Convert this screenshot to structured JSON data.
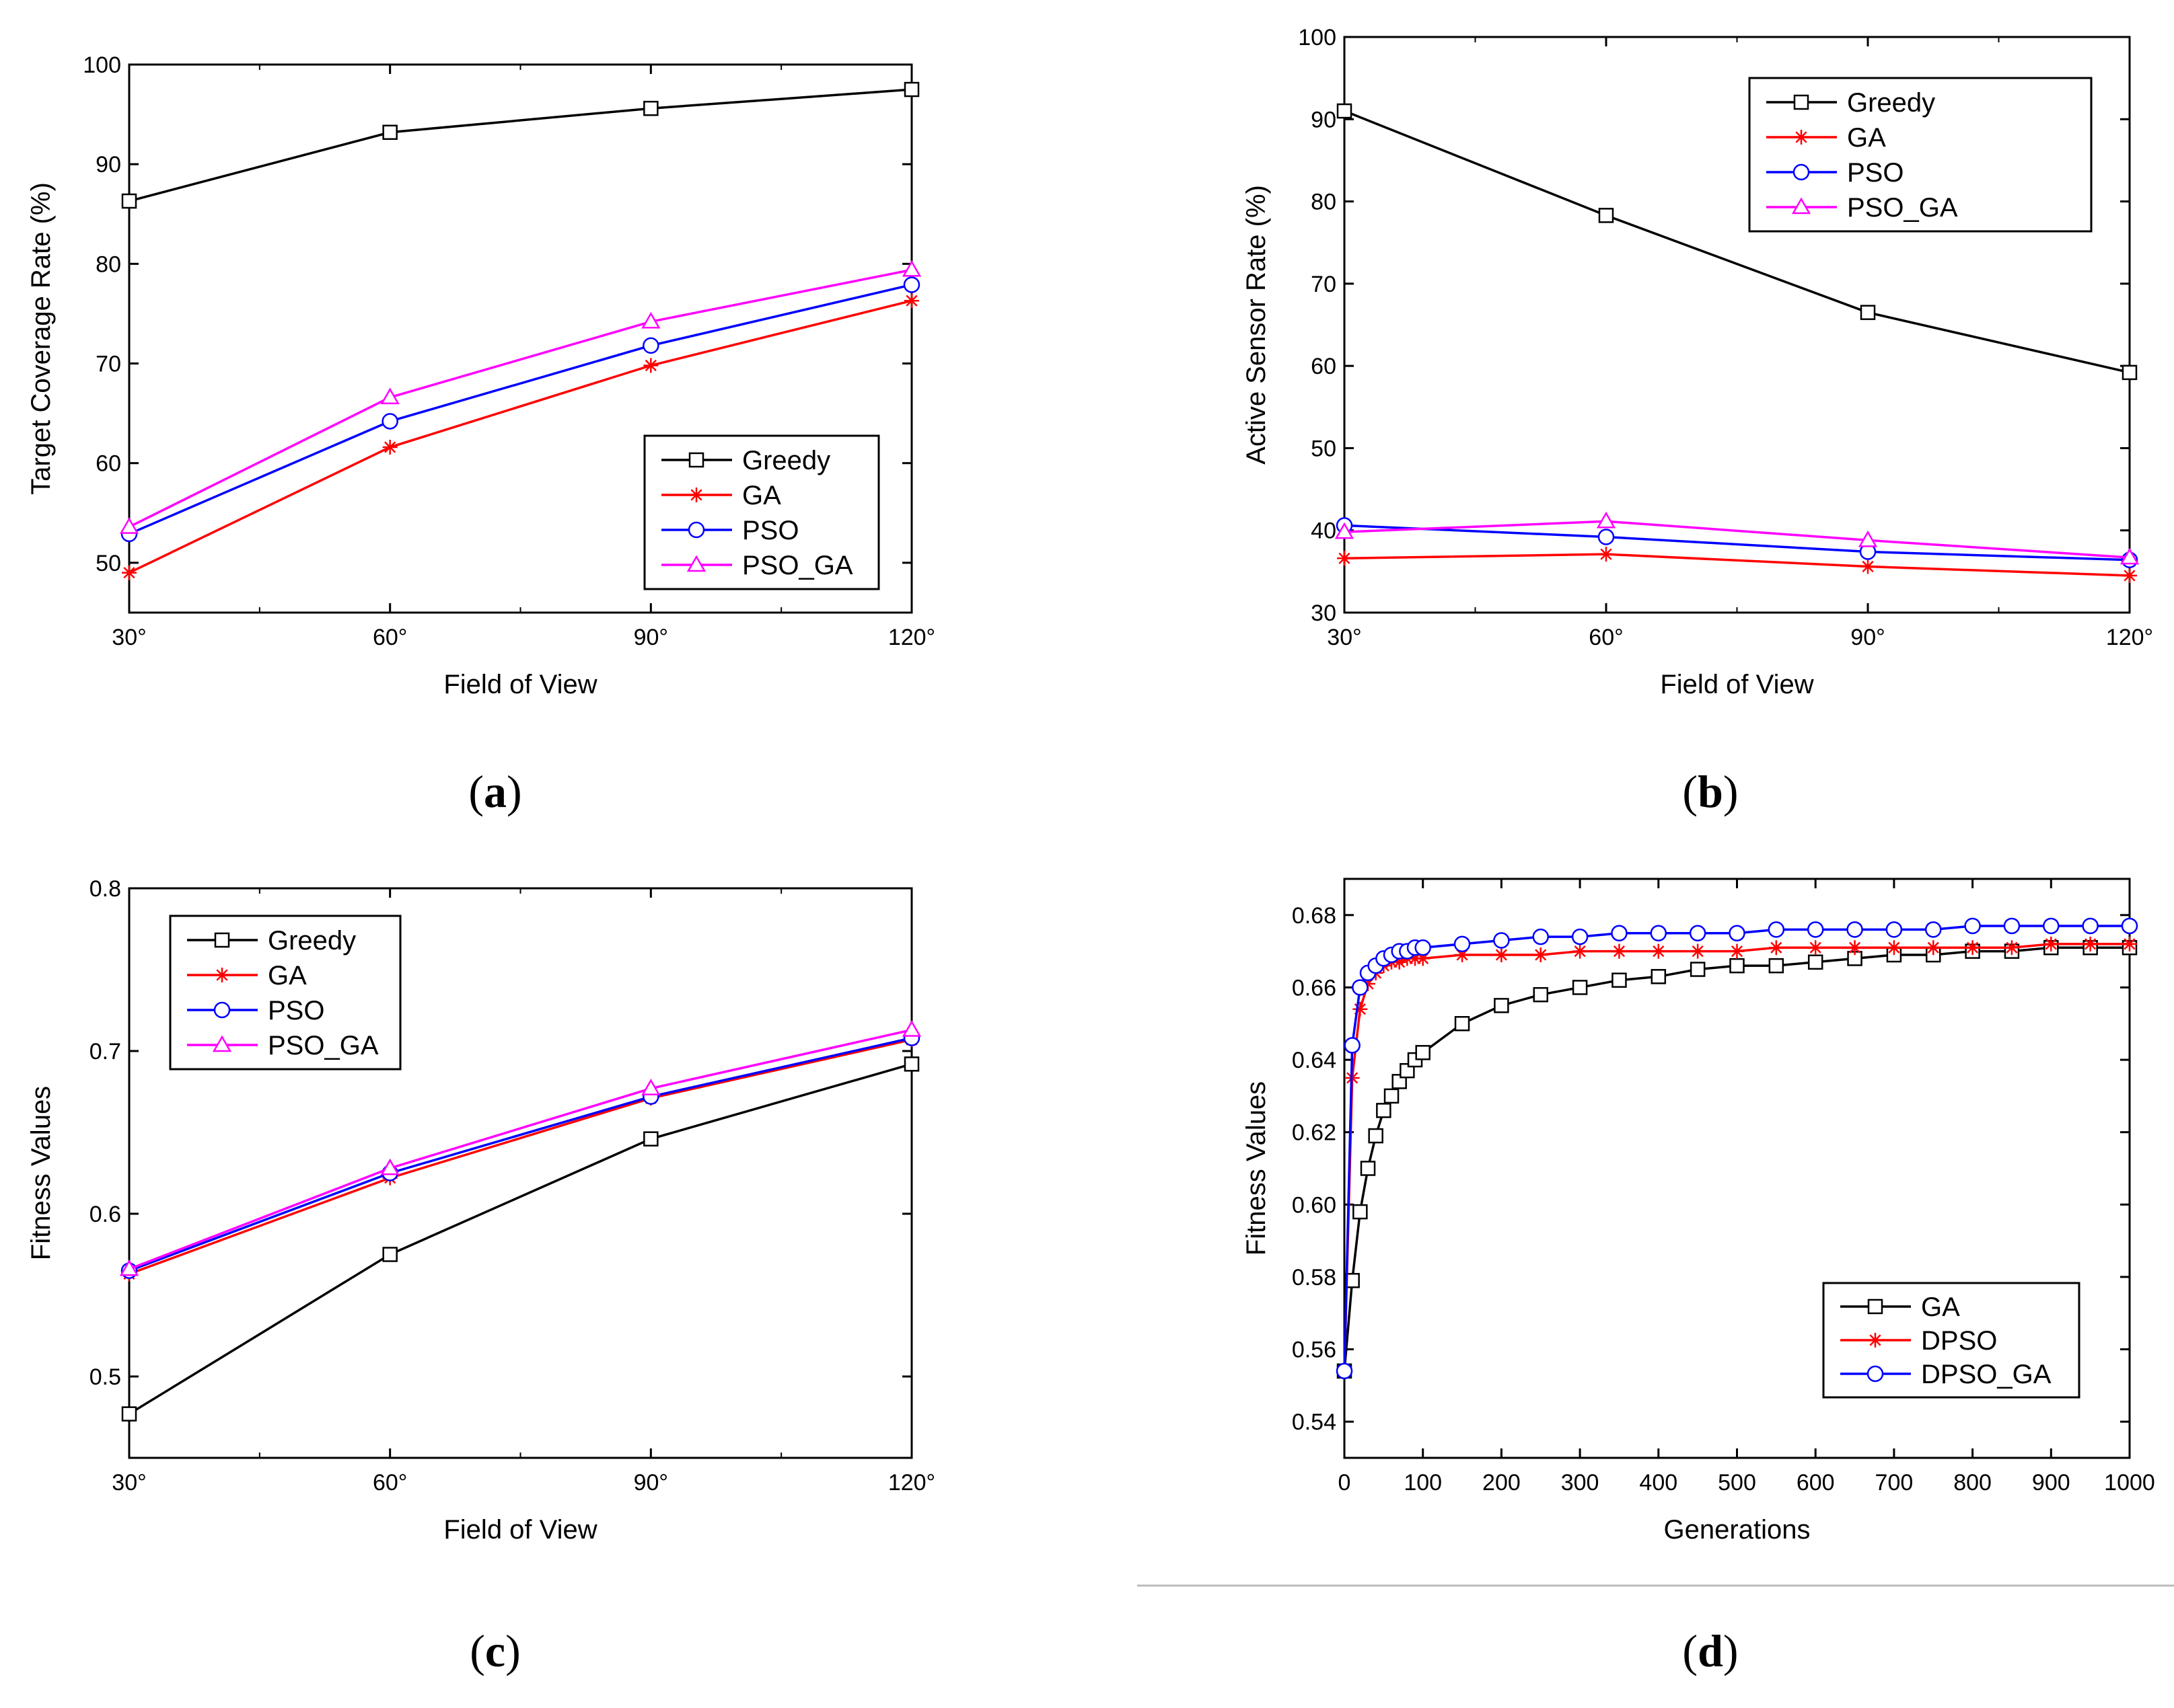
{
  "colors": {
    "Greedy": "#000000",
    "GA": "#ff0000",
    "PSO": "#0000ff",
    "PSO_GA": "#ff00ff",
    "GA_d": "#000000",
    "DPSO": "#ff0000",
    "DPSO_GA": "#0000ff"
  },
  "chart_data": [
    {
      "id": "a",
      "type": "line",
      "caption": "a",
      "xlabel": "Field of View",
      "ylabel": "Target Coverage Rate (%)",
      "categories": [
        "30°",
        "60°",
        "90°",
        "120°"
      ],
      "xlim": [
        30,
        120
      ],
      "ylim": [
        45,
        100
      ],
      "yticks": [
        50,
        60,
        70,
        80,
        90,
        100
      ],
      "ytick_labels": [
        "50",
        "60",
        "70",
        "80",
        "90",
        "100"
      ],
      "legend_position": "bottom-right",
      "series": [
        {
          "name": "Greedy",
          "marker": "square",
          "color_key": "Greedy",
          "values": [
            86.3,
            93.2,
            95.6,
            97.5
          ]
        },
        {
          "name": "GA",
          "marker": "star",
          "color_key": "GA",
          "values": [
            49,
            61.6,
            69.8,
            76.3
          ]
        },
        {
          "name": "PSO",
          "marker": "circle",
          "color_key": "PSO",
          "values": [
            52.9,
            64.2,
            71.8,
            77.9
          ]
        },
        {
          "name": "PSO_GA",
          "marker": "triangle",
          "color_key": "PSO_GA",
          "values": [
            53.6,
            66.6,
            74.2,
            79.4
          ]
        }
      ]
    },
    {
      "id": "b",
      "type": "line",
      "caption": "b",
      "xlabel": "Field of View",
      "ylabel": "Active Sensor Rate (%)",
      "categories": [
        "30°",
        "60°",
        "90°",
        "120°"
      ],
      "xlim": [
        30,
        120
      ],
      "ylim": [
        30,
        100
      ],
      "yticks": [
        30,
        40,
        50,
        60,
        70,
        80,
        90,
        100
      ],
      "ytick_labels": [
        "30",
        "40",
        "50",
        "60",
        "70",
        "80",
        "90",
        "100"
      ],
      "legend_position": "top-right",
      "series": [
        {
          "name": "Greedy",
          "marker": "square",
          "color_key": "Greedy",
          "values": [
            91,
            78.3,
            66.5,
            59.2
          ]
        },
        {
          "name": "GA",
          "marker": "star",
          "color_key": "GA",
          "values": [
            36.6,
            37.1,
            35.6,
            34.5
          ]
        },
        {
          "name": "PSO",
          "marker": "circle",
          "color_key": "PSO",
          "values": [
            40.6,
            39.2,
            37.4,
            36.4
          ]
        },
        {
          "name": "PSO_GA",
          "marker": "triangle",
          "color_key": "PSO_GA",
          "values": [
            39.8,
            41.1,
            38.8,
            36.7
          ]
        }
      ]
    },
    {
      "id": "c",
      "type": "line",
      "caption": "c",
      "xlabel": "Field of View",
      "ylabel": "Fitness Values",
      "categories": [
        "30°",
        "60°",
        "90°",
        "120°"
      ],
      "xlim": [
        30,
        120
      ],
      "ylim": [
        0.45,
        0.8
      ],
      "yticks": [
        0.5,
        0.6,
        0.7,
        0.8
      ],
      "ytick_labels": [
        "0.5",
        "0.6",
        "0.7",
        "0.8"
      ],
      "legend_position": "top-left",
      "series": [
        {
          "name": "Greedy",
          "marker": "square",
          "color_key": "Greedy",
          "values": [
            0.477,
            0.575,
            0.646,
            0.692
          ]
        },
        {
          "name": "GA",
          "marker": "star",
          "color_key": "GA",
          "values": [
            0.563,
            0.622,
            0.671,
            0.707
          ]
        },
        {
          "name": "PSO",
          "marker": "circle",
          "color_key": "PSO",
          "values": [
            0.565,
            0.625,
            0.672,
            0.708
          ]
        },
        {
          "name": "PSO_GA",
          "marker": "triangle",
          "color_key": "PSO_GA",
          "values": [
            0.566,
            0.628,
            0.677,
            0.713
          ]
        }
      ]
    },
    {
      "id": "d",
      "type": "line",
      "caption": "d",
      "xlabel": "Generations",
      "ylabel": "Fitness Values",
      "xlim": [
        0,
        1000
      ],
      "ylim": [
        0.53,
        0.69
      ],
      "xticks": [
        0,
        100,
        200,
        300,
        400,
        500,
        600,
        700,
        800,
        900,
        1000
      ],
      "xtick_labels": [
        "0",
        "100",
        "200",
        "300",
        "400",
        "500",
        "600",
        "700",
        "800",
        "900",
        "1000"
      ],
      "yticks": [
        0.54,
        0.56,
        0.58,
        0.6,
        0.62,
        0.64,
        0.66,
        0.68
      ],
      "ytick_labels": [
        "0.54",
        "0.56",
        "0.58",
        "0.60",
        "0.62",
        "0.64",
        "0.66",
        "0.68"
      ],
      "legend_position": "bottom-right",
      "series": [
        {
          "name": "GA",
          "marker": "square",
          "color_key": "GA_d",
          "x": [
            0,
            10,
            20,
            30,
            40,
            50,
            60,
            70,
            80,
            90,
            100,
            150,
            200,
            250,
            300,
            350,
            400,
            450,
            500,
            550,
            600,
            650,
            700,
            750,
            800,
            850,
            900,
            950,
            1000
          ],
          "values": [
            0.554,
            0.579,
            0.598,
            0.61,
            0.619,
            0.626,
            0.63,
            0.634,
            0.637,
            0.64,
            0.642,
            0.65,
            0.655,
            0.658,
            0.66,
            0.662,
            0.663,
            0.665,
            0.666,
            0.666,
            0.667,
            0.668,
            0.669,
            0.669,
            0.67,
            0.67,
            0.671,
            0.671,
            0.671
          ]
        },
        {
          "name": "DPSO",
          "marker": "star",
          "color_key": "DPSO",
          "x": [
            0,
            10,
            20,
            30,
            40,
            50,
            60,
            70,
            80,
            90,
            100,
            150,
            200,
            250,
            300,
            350,
            400,
            450,
            500,
            550,
            600,
            650,
            700,
            750,
            800,
            850,
            900,
            950,
            1000
          ],
          "values": [
            0.554,
            0.635,
            0.654,
            0.661,
            0.664,
            0.666,
            0.667,
            0.667,
            0.668,
            0.668,
            0.668,
            0.669,
            0.669,
            0.669,
            0.67,
            0.67,
            0.67,
            0.67,
            0.67,
            0.671,
            0.671,
            0.671,
            0.671,
            0.671,
            0.671,
            0.671,
            0.672,
            0.672,
            0.672
          ]
        },
        {
          "name": "DPSO_GA",
          "marker": "circle",
          "color_key": "DPSO_GA",
          "x": [
            0,
            10,
            20,
            30,
            40,
            50,
            60,
            70,
            80,
            90,
            100,
            150,
            200,
            250,
            300,
            350,
            400,
            450,
            500,
            550,
            600,
            650,
            700,
            750,
            800,
            850,
            900,
            950,
            1000
          ],
          "values": [
            0.554,
            0.644,
            0.66,
            0.664,
            0.666,
            0.668,
            0.669,
            0.67,
            0.67,
            0.671,
            0.671,
            0.672,
            0.673,
            0.674,
            0.674,
            0.675,
            0.675,
            0.675,
            0.675,
            0.676,
            0.676,
            0.676,
            0.676,
            0.676,
            0.677,
            0.677,
            0.677,
            0.677,
            0.677
          ]
        }
      ]
    }
  ]
}
